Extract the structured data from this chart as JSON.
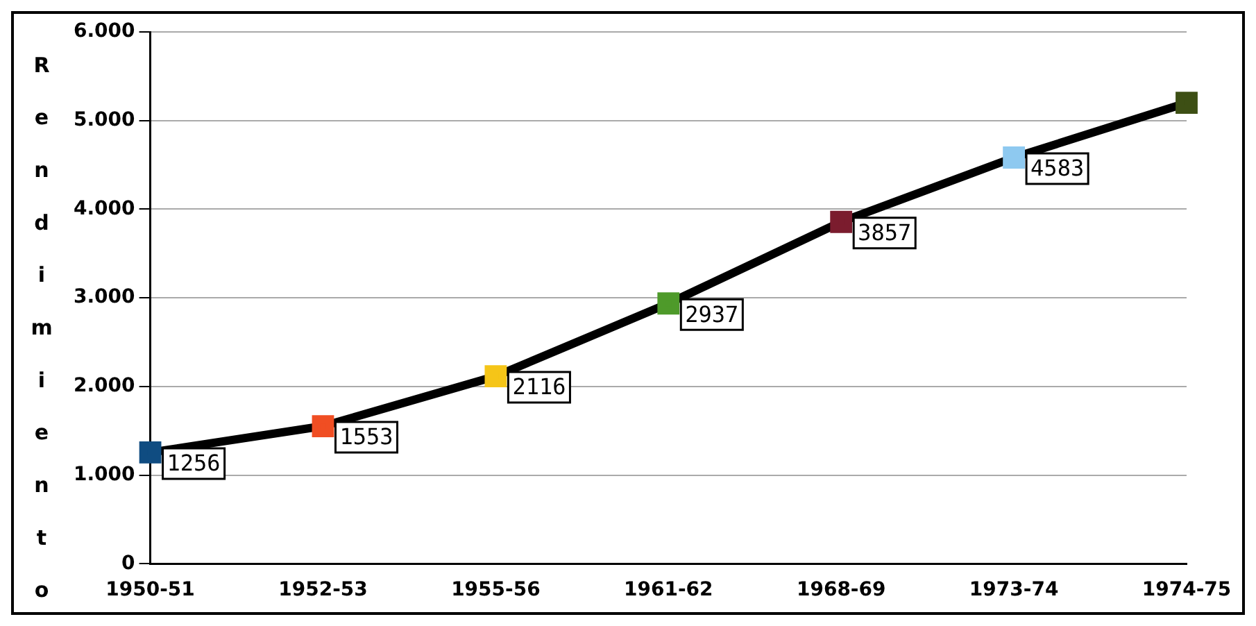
{
  "chart_data": {
    "type": "line",
    "ylabel": "Rendimiento",
    "categories": [
      "1950-51",
      "1952-53",
      "1955-56",
      "1961-62",
      "1968-69",
      "1973-74",
      "1974-75"
    ],
    "series": [
      {
        "color": "#000000",
        "colors": [
          "#0f4c81",
          "#f04e23",
          "#f5c518",
          "#4e9a2a",
          "#7b1c2e",
          "#8ec9f0",
          "#3d4f14"
        ],
        "values": [
          1256,
          1553,
          2116,
          2937,
          3857,
          4583,
          5200
        ],
        "value_labels": [
          "1256",
          "1553",
          "2116",
          "2937",
          "3857",
          "4583",
          null
        ]
      }
    ],
    "ylim": [
      0,
      6000
    ],
    "yticks": [
      {
        "value": 0,
        "label": "0"
      },
      {
        "value": 1000,
        "label": "1.000"
      },
      {
        "value": 2000,
        "label": "2.000"
      },
      {
        "value": 3000,
        "label": "3.000"
      },
      {
        "value": 4000,
        "label": "4.000"
      },
      {
        "value": 5000,
        "label": "5.000"
      },
      {
        "value": 6000,
        "label": "6.000"
      }
    ],
    "grid": "y",
    "legend": false,
    "marker": "square",
    "line_style": "solid"
  }
}
